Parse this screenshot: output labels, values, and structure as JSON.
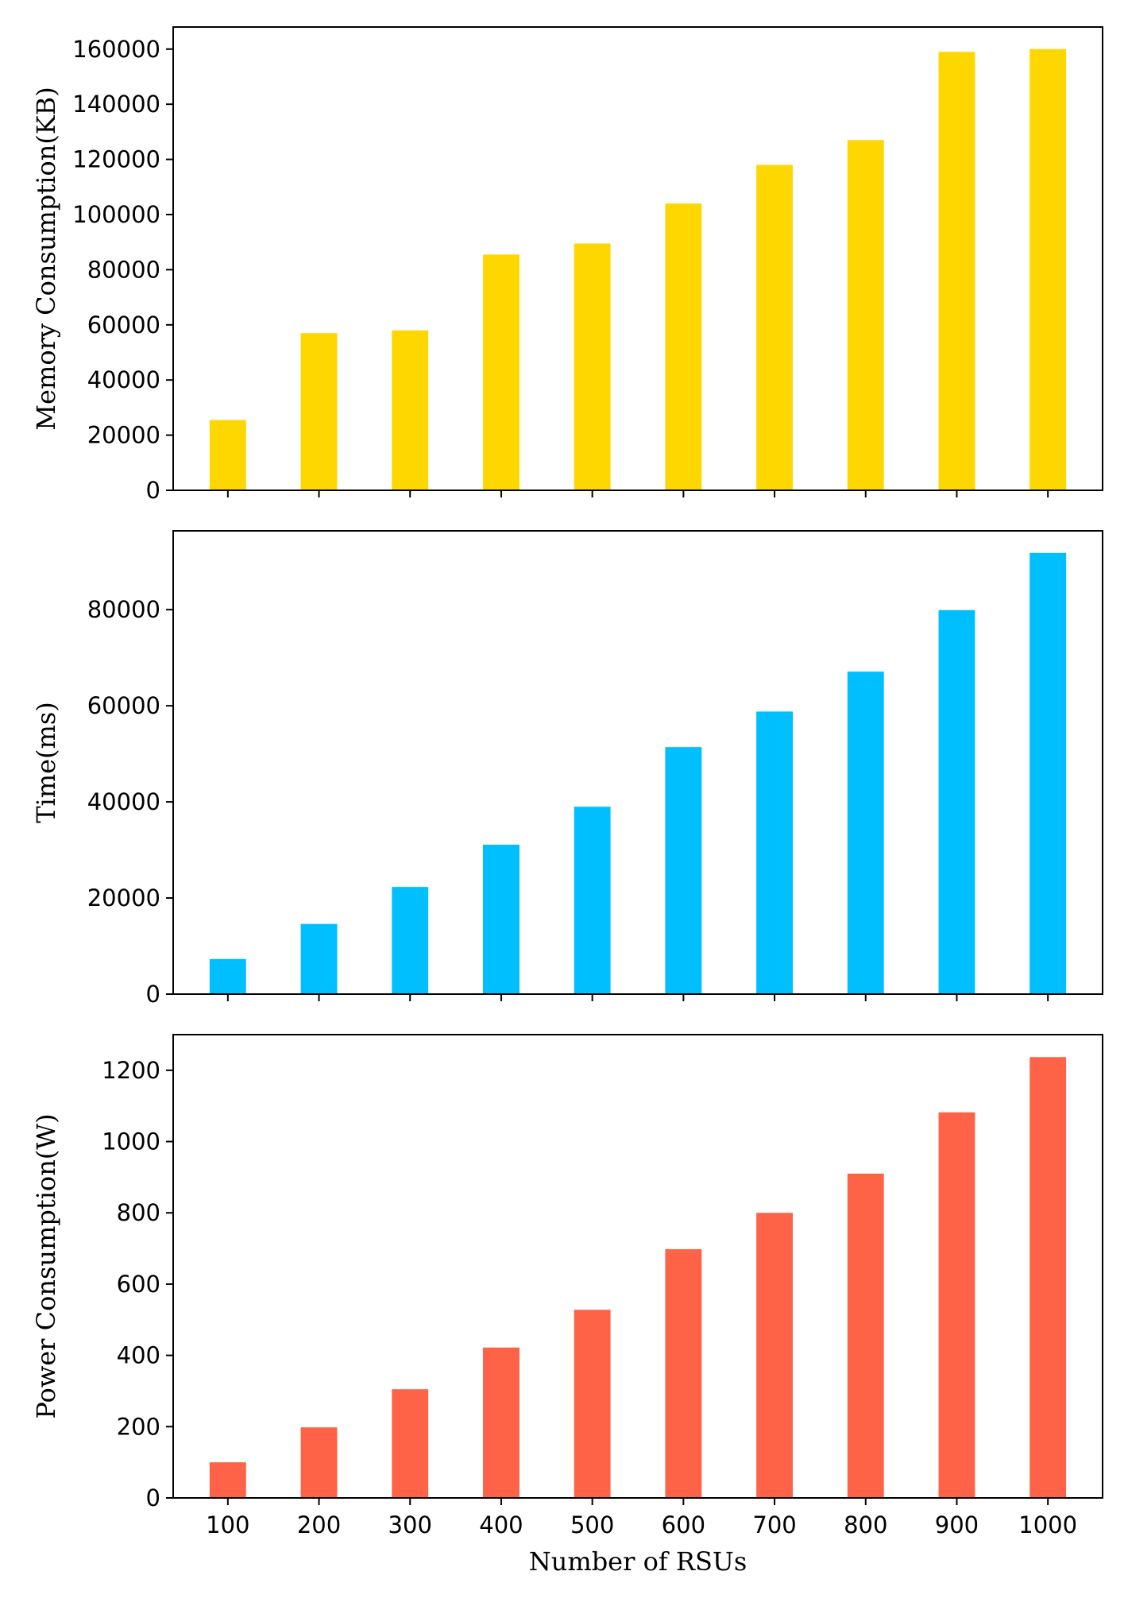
{
  "chart_data": [
    {
      "type": "bar",
      "categories": [
        "100",
        "200",
        "300",
        "400",
        "500",
        "600",
        "700",
        "800",
        "900",
        "1000"
      ],
      "values": [
        25500,
        57000,
        58000,
        85500,
        89500,
        104000,
        118000,
        127000,
        159000,
        160000
      ],
      "ylabel": "Memory Consumption(KB)",
      "xlabel": "",
      "ylim": [
        0,
        168000
      ],
      "yticks": [
        0,
        20000,
        40000,
        60000,
        80000,
        100000,
        120000,
        140000,
        160000
      ],
      "color": "#FFD700",
      "show_x_tick_labels": false
    },
    {
      "type": "bar",
      "categories": [
        "100",
        "200",
        "300",
        "400",
        "500",
        "600",
        "700",
        "800",
        "900",
        "1000"
      ],
      "values": [
        7300,
        14600,
        22300,
        31100,
        39000,
        51400,
        58800,
        67100,
        79900,
        91800
      ],
      "ylabel": "Time(ms)",
      "xlabel": "",
      "ylim": [
        0,
        96400
      ],
      "yticks": [
        0,
        20000,
        40000,
        60000,
        80000
      ],
      "color": "#00BFFF",
      "show_x_tick_labels": false
    },
    {
      "type": "bar",
      "categories": [
        "100",
        "200",
        "300",
        "400",
        "500",
        "600",
        "700",
        "800",
        "900",
        "1000"
      ],
      "values": [
        100,
        198,
        305,
        422,
        528,
        698,
        800,
        910,
        1082,
        1237
      ],
      "ylabel": "Power Consumption(W)",
      "xlabel": "Number of RSUs",
      "ylim": [
        0,
        1300
      ],
      "yticks": [
        0,
        200,
        400,
        600,
        800,
        1000,
        1200
      ],
      "color": "#FF6347",
      "show_x_tick_labels": true
    }
  ]
}
